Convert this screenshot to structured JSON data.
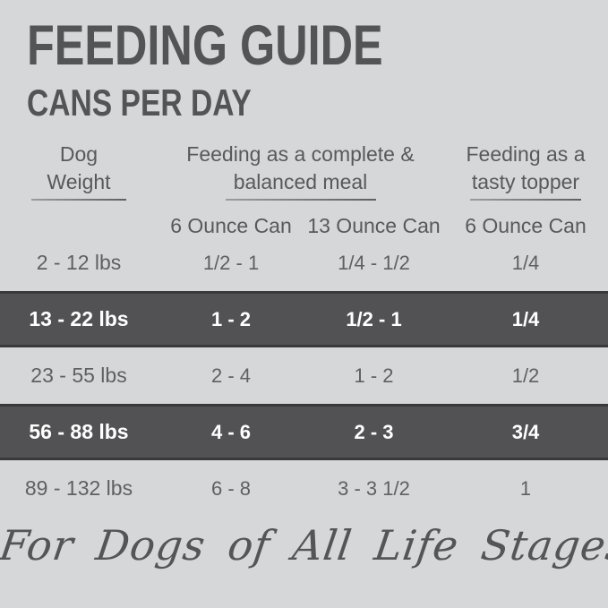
{
  "colors": {
    "background": "#d6d7d9",
    "title_text": "#535456",
    "header_text": "#58595b",
    "cell_text": "#5f6062",
    "dark_row_background": "#525254",
    "dark_row_border": "#39393b",
    "dark_row_text": "#ffffff",
    "underline": "#7c7d7f"
  },
  "header": {
    "title": "FEEDING GUIDE",
    "subtitle": "CANS PER DAY"
  },
  "table": {
    "column_groups": [
      {
        "line1": "Dog",
        "line2": "Weight"
      },
      {
        "line1": "Feeding as a complete &",
        "line2": "balanced meal"
      },
      {
        "line1": "Feeding as a",
        "line2": "tasty topper"
      }
    ],
    "sub_headers": [
      "6 Ounce Can",
      "13 Ounce Can",
      "6 Ounce Can"
    ],
    "rows": [
      {
        "weight": "2 - 12 lbs",
        "complete_6oz": "1/2 - 1",
        "complete_13oz": "1/4 - 1/2",
        "topper_6oz": "1/4",
        "highlighted": false
      },
      {
        "weight": "13 - 22 lbs",
        "complete_6oz": "1 - 2",
        "complete_13oz": "1/2 - 1",
        "topper_6oz": "1/4",
        "highlighted": true
      },
      {
        "weight": "23 - 55 lbs",
        "complete_6oz": "2 - 4",
        "complete_13oz": "1 - 2",
        "topper_6oz": "1/2",
        "highlighted": false
      },
      {
        "weight": "56 - 88 lbs",
        "complete_6oz": "4 - 6",
        "complete_13oz": "2 - 3",
        "topper_6oz": "3/4",
        "highlighted": true
      },
      {
        "weight": "89 - 132 lbs",
        "complete_6oz": "6 - 8",
        "complete_13oz": "3 - 3 1/2",
        "topper_6oz": "1",
        "highlighted": false
      }
    ]
  },
  "footer": {
    "tagline": "For Dogs of All Life Stages"
  }
}
